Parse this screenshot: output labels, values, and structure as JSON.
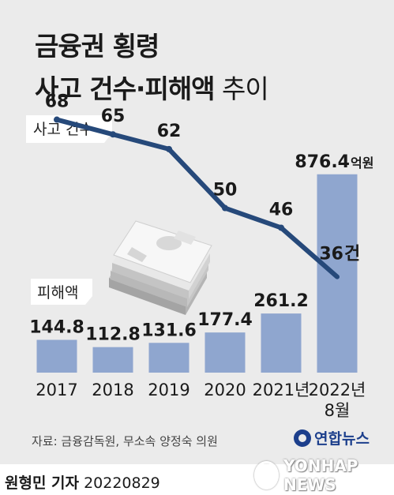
{
  "title": {
    "line1": "금융권 횡령",
    "line2_bold": "사고 건수·피해액",
    "line2_light": " 추이"
  },
  "chart_data": {
    "type": "bar+line",
    "categories": [
      "2017",
      "2018",
      "2019",
      "2020",
      "2021년",
      "2022년 8월"
    ],
    "series": [
      {
        "name": "피해액",
        "type": "bar",
        "unit": "억원",
        "values": [
          144.8,
          112.8,
          131.6,
          177.4,
          261.2,
          876.4
        ],
        "color": "#8fa6cf"
      },
      {
        "name": "사고 건수",
        "type": "line",
        "unit": "건",
        "values": [
          68,
          65,
          62,
          50,
          46,
          36
        ],
        "color": "#26497a"
      }
    ],
    "bar_labels": [
      "144.8",
      "112.8",
      "131.6",
      "177.4",
      "261.2",
      "876.4"
    ],
    "line_labels": [
      "68",
      "65",
      "62",
      "50",
      "46",
      "36"
    ],
    "bar_unit_label": "억원",
    "line_unit_label": "건",
    "bar_ylim": [
      0,
      900
    ],
    "line_ylim": [
      30,
      75
    ],
    "legend": [
      "사고 건수",
      "피해액"
    ],
    "grid": false
  },
  "source": "자료: 금융감독원, 무소속 양정숙 의원",
  "footer": {
    "author": "원형민 기자",
    "date": "20220829"
  },
  "logo": {
    "text": "연합뉴스",
    "icon": "yonhap-logo-icon"
  },
  "watermark": {
    "text": "YONHAP NEWS",
    "icon": "yonhap-ring-icon"
  },
  "illustration": {
    "icon": "money-stack-icon"
  }
}
